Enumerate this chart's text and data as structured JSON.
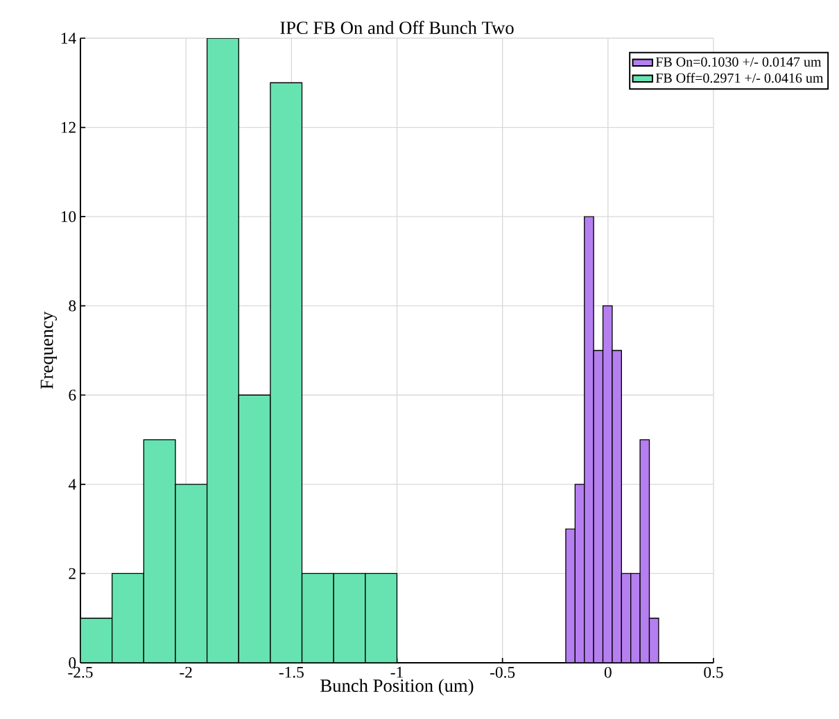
{
  "chart_data": {
    "type": "histogram",
    "title": "IPC FB On and Off Bunch Two",
    "xlabel": "Bunch Position (um)",
    "ylabel": "Frequency",
    "bins": [
      -2.5,
      -2.35,
      -2.2,
      -2.05,
      -1.9,
      -1.75,
      -1.6,
      -1.45,
      -1.3,
      -1.15,
      -1.0,
      -0.2,
      -0.156,
      -0.112,
      -0.068,
      -0.024,
      0.02,
      0.064,
      0.108,
      0.152,
      0.196,
      0.24
    ],
    "series": [
      {
        "name": "FB On=0.1030 +/- 0.0147 um",
        "color": "#b57ff0",
        "values": [
          null,
          null,
          null,
          null,
          null,
          null,
          null,
          null,
          null,
          null,
          null,
          3,
          4,
          10,
          7,
          8,
          7,
          2,
          2,
          5,
          1
        ]
      },
      {
        "name": "FB Off=0.2971 +/- 0.0416 um",
        "color": "#66e3b1",
        "values": [
          1,
          2,
          5,
          4,
          14,
          6,
          13,
          2,
          2,
          2,
          null,
          null,
          null,
          null,
          null,
          null,
          null,
          null,
          null,
          null,
          null
        ]
      }
    ],
    "xlim": [
      -2.5,
      0.5
    ],
    "ylim": [
      0,
      14
    ],
    "xticks": [
      -2.5,
      -2,
      -1.5,
      -1,
      -0.5,
      0,
      0.5
    ],
    "yticks": [
      0,
      2,
      4,
      6,
      8,
      10,
      12,
      14
    ],
    "grid": true,
    "legend": "top right"
  }
}
